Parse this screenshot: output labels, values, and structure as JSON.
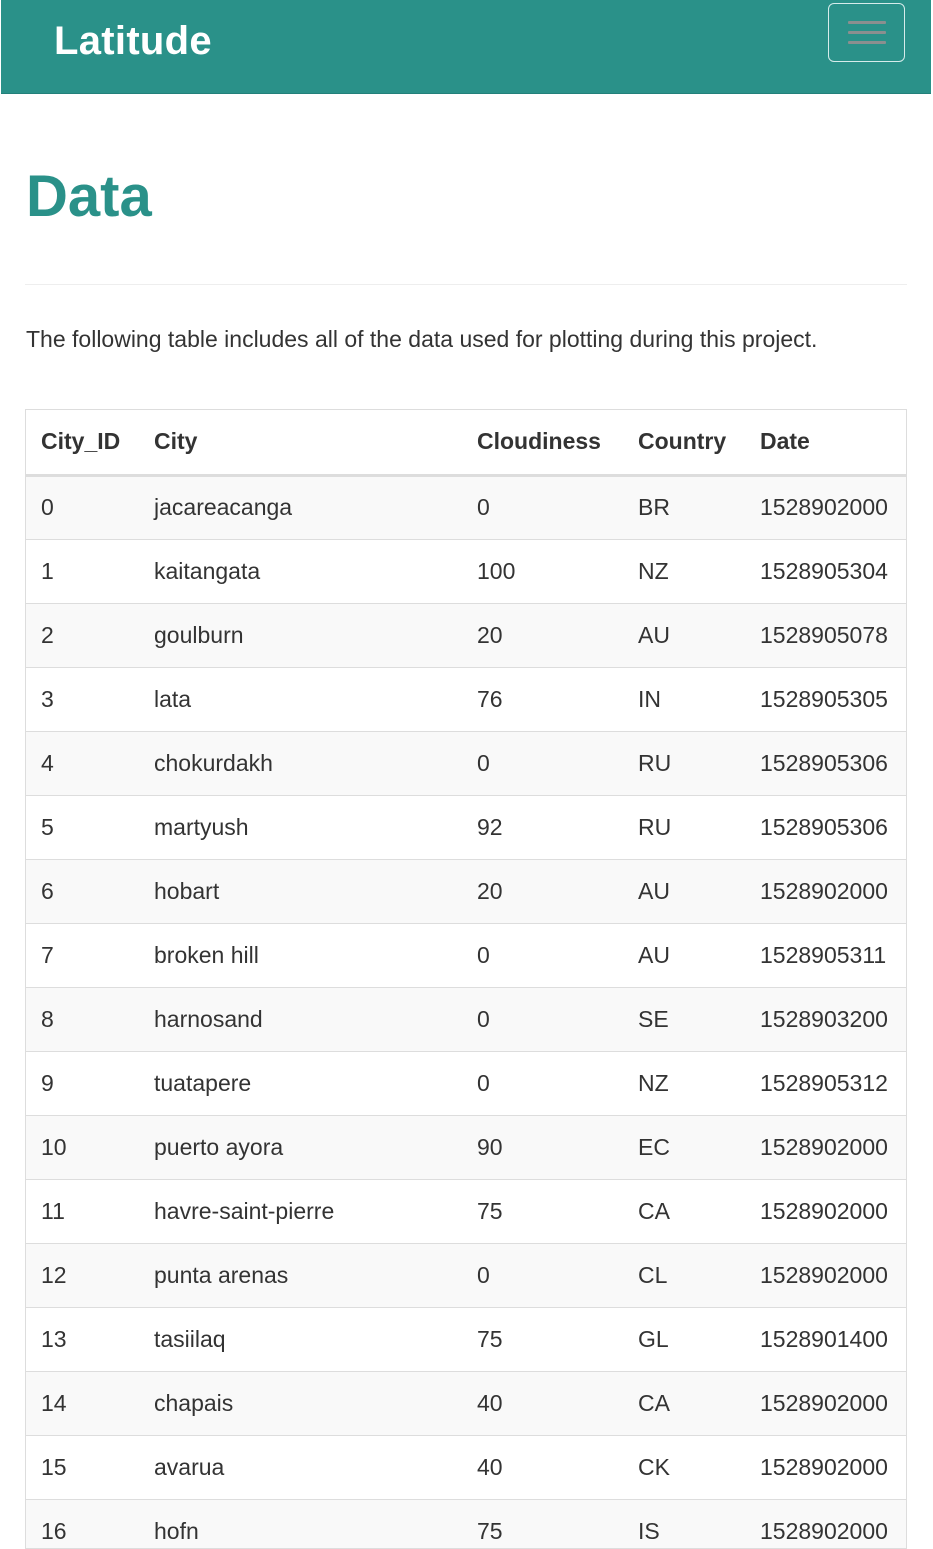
{
  "navbar": {
    "brand": "Latitude",
    "toggle_icon": "hamburger-menu-icon"
  },
  "page": {
    "title": "Data",
    "intro": "The following table includes all of the data used for plotting during this project."
  },
  "table": {
    "headers": [
      "City_ID",
      "City",
      "Cloudiness",
      "Country",
      "Date"
    ],
    "rows": [
      [
        "0",
        "jacareacanga",
        "0",
        "BR",
        "1528902000"
      ],
      [
        "1",
        "kaitangata",
        "100",
        "NZ",
        "1528905304"
      ],
      [
        "2",
        "goulburn",
        "20",
        "AU",
        "1528905078"
      ],
      [
        "3",
        "lata",
        "76",
        "IN",
        "1528905305"
      ],
      [
        "4",
        "chokurdakh",
        "0",
        "RU",
        "1528905306"
      ],
      [
        "5",
        "martyush",
        "92",
        "RU",
        "1528905306"
      ],
      [
        "6",
        "hobart",
        "20",
        "AU",
        "1528902000"
      ],
      [
        "7",
        "broken hill",
        "0",
        "AU",
        "1528905311"
      ],
      [
        "8",
        "harnosand",
        "0",
        "SE",
        "1528903200"
      ],
      [
        "9",
        "tuatapere",
        "0",
        "NZ",
        "1528905312"
      ],
      [
        "10",
        "puerto ayora",
        "90",
        "EC",
        "1528902000"
      ],
      [
        "11",
        "havre-saint-pierre",
        "75",
        "CA",
        "1528902000"
      ],
      [
        "12",
        "punta arenas",
        "0",
        "CL",
        "1528902000"
      ],
      [
        "13",
        "tasiilaq",
        "75",
        "GL",
        "1528901400"
      ],
      [
        "14",
        "chapais",
        "40",
        "CA",
        "1528902000"
      ],
      [
        "15",
        "avarua",
        "40",
        "CK",
        "1528902000"
      ],
      [
        "16",
        "hofn",
        "75",
        "IS",
        "1528902000"
      ]
    ]
  },
  "colors": {
    "brand": "#2a9189",
    "stripe": "#f9f9f9",
    "border": "#dddddd"
  }
}
